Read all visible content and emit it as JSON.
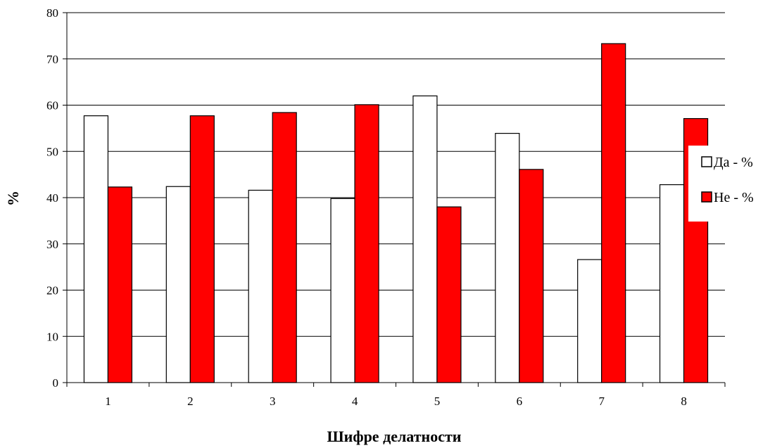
{
  "chart_data": {
    "type": "bar",
    "categories": [
      "1",
      "2",
      "3",
      "4",
      "5",
      "6",
      "7",
      "8"
    ],
    "series": [
      {
        "name": "Да - %",
        "color": "#ffffff",
        "values": [
          57.7,
          42.4,
          41.6,
          39.8,
          62.0,
          53.9,
          26.6,
          42.8
        ]
      },
      {
        "name": "Не - %",
        "color": "#ff0000",
        "values": [
          42.3,
          57.7,
          58.4,
          60.1,
          38.0,
          46.1,
          73.3,
          57.1
        ]
      }
    ],
    "title": "",
    "xlabel": "Шифре делатности",
    "ylabel": "%",
    "ylim": [
      0,
      80
    ],
    "yticks": [
      0,
      10,
      20,
      30,
      40,
      50,
      60,
      70,
      80
    ],
    "grid": true,
    "legend_position": "right"
  }
}
